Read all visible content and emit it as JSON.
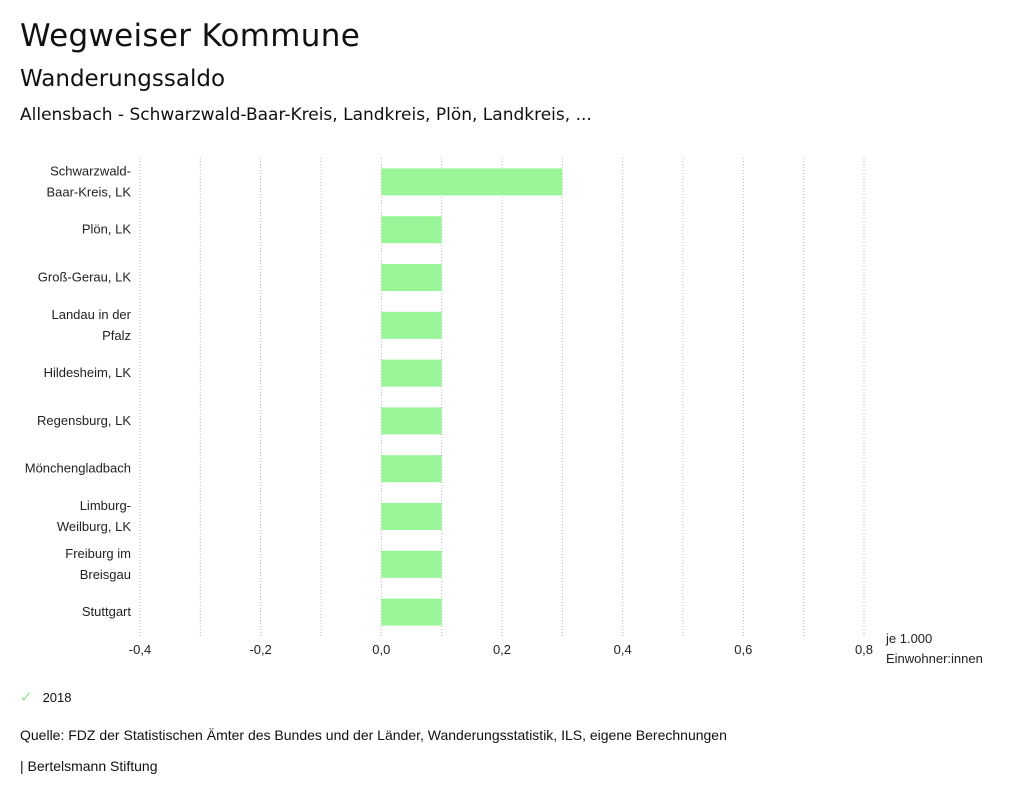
{
  "header": {
    "title": "Wegweiser Kommune",
    "subtitle": "Wanderungssaldo",
    "comparison": "Allensbach - Schwarzwald-Baar-Kreis, Landkreis, Plön, Landkreis, ..."
  },
  "chart_data": {
    "type": "bar",
    "orientation": "horizontal",
    "categories": [
      [
        "Schwarzwald-",
        "Baar-Kreis, LK"
      ],
      [
        "Plön, LK"
      ],
      [
        "Groß-Gerau, LK"
      ],
      [
        "Landau in der",
        "Pfalz"
      ],
      [
        "Hildesheim, LK"
      ],
      [
        "Regensburg, LK"
      ],
      [
        "Mönchengladbach"
      ],
      [
        "Limburg-",
        "Weilburg, LK"
      ],
      [
        "Freiburg im",
        "Breisgau"
      ],
      [
        "Stuttgart"
      ]
    ],
    "series": [
      {
        "name": "2018",
        "color": "#98f598",
        "values": [
          0.3,
          0.1,
          0.1,
          0.1,
          0.1,
          0.1,
          0.1,
          0.1,
          0.1,
          0.1
        ]
      }
    ],
    "xlim": [
      -0.4,
      0.8
    ],
    "xticks": [
      "-0,4",
      "-0,2",
      "0,0",
      "0,2",
      "0,4",
      "0,6",
      "0,8"
    ],
    "xtick_values": [
      -0.4,
      -0.2,
      0.0,
      0.2,
      0.4,
      0.6,
      0.8
    ],
    "xlabel": [
      "je 1.000",
      "Einwohner:innen"
    ],
    "grid": true,
    "grid_style": "dotted"
  },
  "legend": {
    "label": "2018",
    "color": "#8ee68e"
  },
  "footer": {
    "source": "Quelle: FDZ der Statistischen Ämter des Bundes und der Länder, Wanderungsstatistik, ILS, eigene Berechnungen",
    "brand": "| Bertelsmann Stiftung"
  }
}
